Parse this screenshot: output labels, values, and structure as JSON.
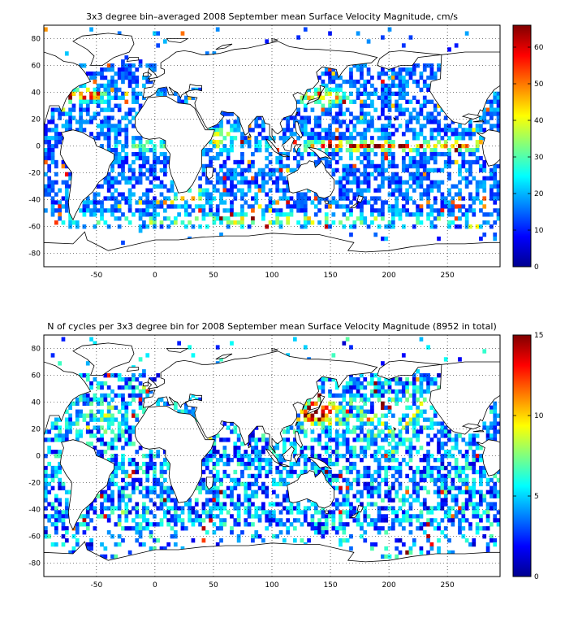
{
  "panels": [
    {
      "title": "3x3 degree bin–averaged 2008 September mean Surface Velocity Magnitude, cm/s",
      "xticks": [
        "-50",
        "0",
        "50",
        "100",
        "150",
        "200",
        "250"
      ],
      "yticks": [
        "80",
        "60",
        "40",
        "20",
        "0",
        "-20",
        "-40",
        "-60",
        "-80"
      ],
      "colorbar_ticks": [
        "60",
        "50",
        "40",
        "30",
        "20",
        "10",
        "0"
      ]
    },
    {
      "title": "N of cycles per 3x3 degree bin for 2008 September mean Surface Velocity Magnitude (8952 in total)",
      "xticks": [
        "-50",
        "0",
        "50",
        "100",
        "150",
        "200",
        "250"
      ],
      "yticks": [
        "80",
        "60",
        "40",
        "20",
        "0",
        "-20",
        "-40",
        "-60",
        "-80"
      ],
      "colorbar_ticks": [
        "15",
        "10",
        "5",
        "0"
      ]
    }
  ],
  "chart_data": [
    {
      "type": "heatmap",
      "title": "3x3 degree bin–averaged 2008 September mean Surface Velocity Magnitude, cm/s",
      "xlim": [
        -95,
        295
      ],
      "ylim": [
        -90,
        90
      ],
      "xticks": [
        -50,
        0,
        50,
        100,
        150,
        200,
        250
      ],
      "yticks": [
        -80,
        -60,
        -40,
        -20,
        0,
        20,
        40,
        60,
        80
      ],
      "bin_size_deg": 3,
      "colorbar": {
        "min": 0,
        "max": 66,
        "ticks": [
          0,
          10,
          20,
          30,
          40,
          50,
          60
        ],
        "colormap": "jet"
      },
      "grid": true,
      "notes": "High values in equatorial Pacific, Gulf Stream, Kuroshio, Agulhas, Antarctic Circumpolar Current"
    },
    {
      "type": "heatmap",
      "title": "N of cycles per 3x3 degree bin for 2008 September mean Surface Velocity Magnitude (8952 in total)",
      "xlim": [
        -95,
        295
      ],
      "ylim": [
        -90,
        90
      ],
      "xticks": [
        -50,
        0,
        50,
        100,
        150,
        200,
        250
      ],
      "yticks": [
        -80,
        -60,
        -40,
        -20,
        0,
        20,
        40,
        60,
        80
      ],
      "bin_size_deg": 3,
      "colorbar": {
        "min": 0,
        "max": 15,
        "ticks": [
          0,
          5,
          10,
          15
        ],
        "colormap": "jet"
      },
      "total_cycles": 8952,
      "grid": true,
      "notes": "Highest counts in NW Pacific (Kuroshio region)"
    }
  ]
}
